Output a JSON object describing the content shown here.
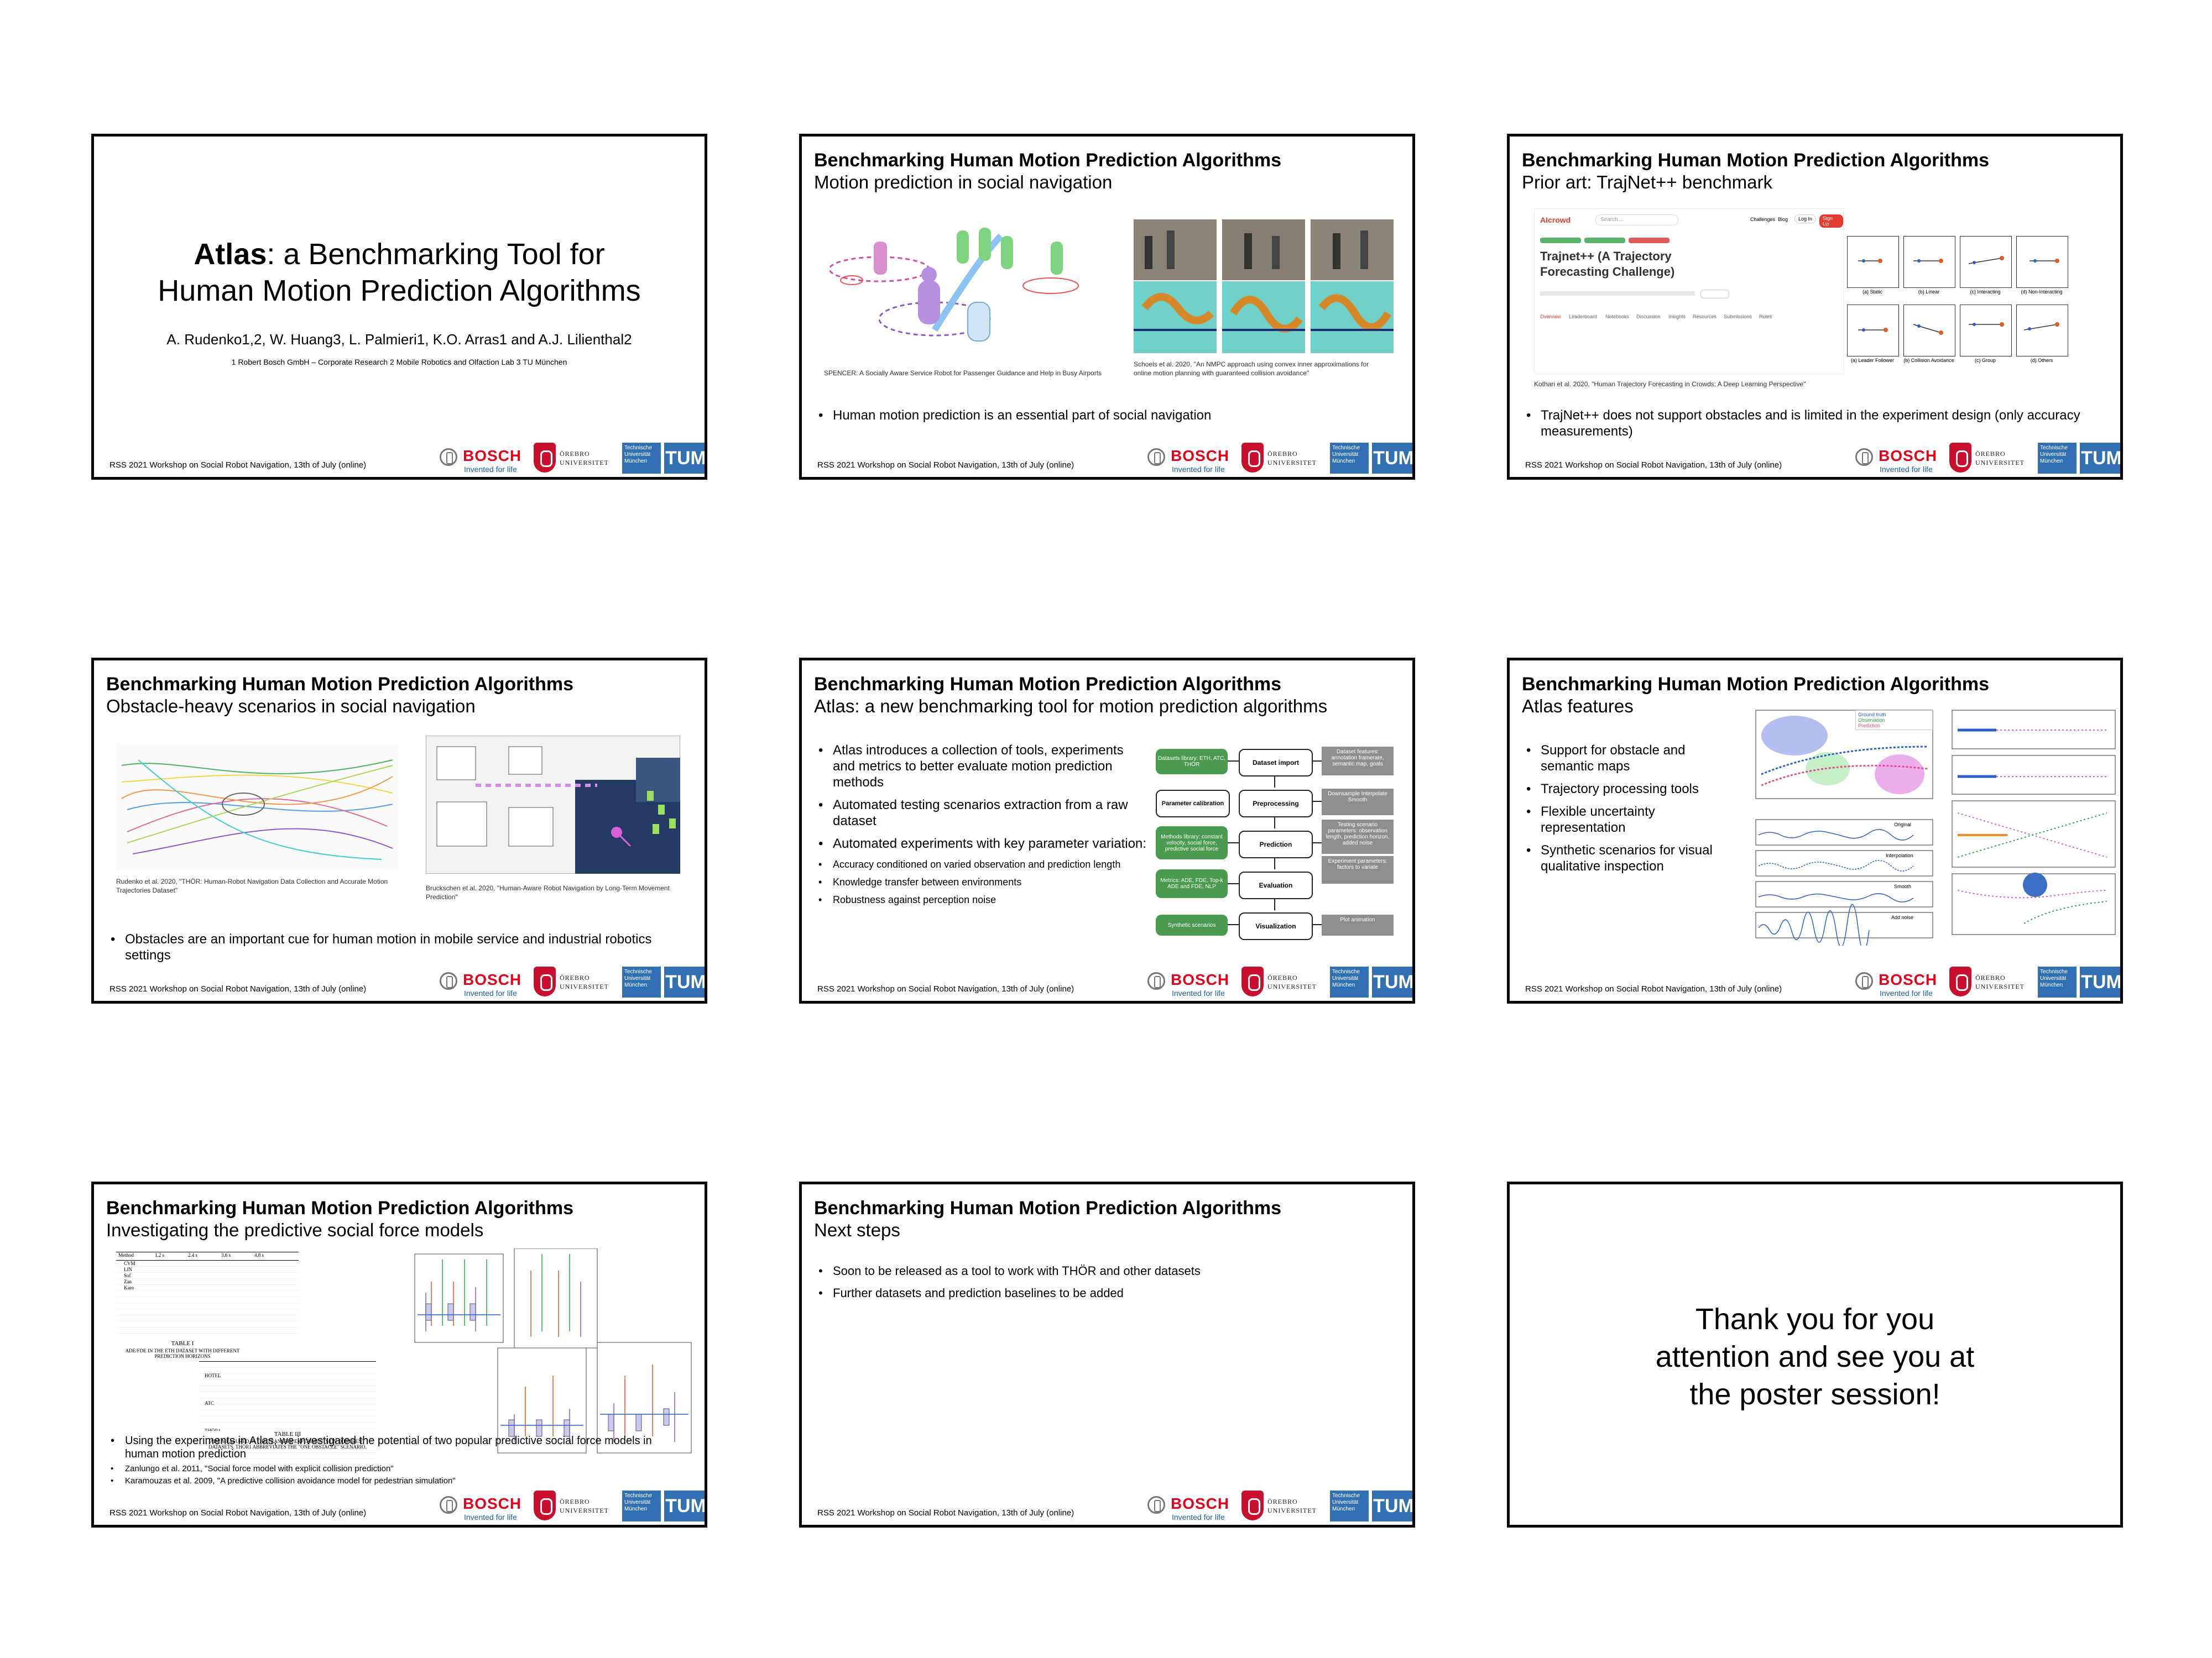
{
  "common": {
    "deck_title": "Benchmarking Human Motion Prediction Algorithms",
    "footer": "RSS 2021 Workshop on Social Robot Navigation, 13th of July (online)",
    "bosch": "BOSCH",
    "bosch_tag": "Invented for life",
    "orebro": "ÖREBRO UNIVERSITET",
    "tum_text": "Technische Universität München",
    "tum_logo": "TUM"
  },
  "slide1": {
    "title_bold": "Atlas",
    "title_rest": ": a Benchmarking Tool for",
    "title_line2": "Human Motion Prediction Algorithms",
    "authors": "A. Rudenko1,2, W. Huang3, L. Palmieri1, K.O. Arras1 and A.J. Lilienthal2",
    "affiliations": "1 Robert Bosch GmbH – Corporate Research    2 Mobile Robotics and Olfaction Lab    3 TU München"
  },
  "slide2": {
    "subtitle": "Motion prediction in social navigation",
    "caption_left": "SPENCER: A Socially Aware Service Robot for Passenger Guidance and Help in Busy Airports",
    "caption_right": "Schoels et al. 2020, \"An NMPC approach using convex inner approximations for online motion planning with guaranteed collision avoidance\"",
    "bullet": "Human motion prediction is an essential part of social navigation"
  },
  "slide3": {
    "subtitle": "Prior art: TrajNet++ benchmark",
    "app_logo": "AIcrowd",
    "search": "Search...",
    "nav_items": [
      "Challenges",
      "Blog",
      "Log In",
      "Sign Up"
    ],
    "challenge_title": "Trajnet++ (A Trajectory Forecasting Challenge)",
    "tabs": [
      "Overview",
      "Leaderboard",
      "Notebooks",
      "Discussion",
      "Insights",
      "Resources",
      "Submissions",
      "Rules"
    ],
    "panel_labels": [
      "(a) Static",
      "(b) Linear",
      "(c) Interacting",
      "(d) Non-Interacting",
      "(a) Leader Follower",
      "(b) Collision Avoidance",
      "(c) Group",
      "(d) Others"
    ],
    "caption": "Kothari et al. 2020, \"Human Trajectory Forecasting in Crowds: A Deep Learning Perspective\"",
    "bullet": "TrajNet++ does not support obstacles and is limited in the experiment design (only accuracy measurements)"
  },
  "slide4": {
    "subtitle": "Obstacle-heavy scenarios in social navigation",
    "caption_left": "Rudenko et al. 2020, \"THÖR: Human-Robot Navigation Data Collection and Accurate Motion Trajectories Dataset\"",
    "caption_right": "Bruckschen et al. 2020, \"Human-Aware Robot Navigation by Long-Term Movement Prediction\"",
    "bullet": "Obstacles are an important cue for human motion in mobile service and industrial robotics settings"
  },
  "slide5": {
    "subtitle": "Atlas: a new benchmarking tool for motion prediction algorithms",
    "bullets": [
      "Atlas introduces a collection of tools, experiments and metrics to better evaluate motion prediction methods",
      "Automated testing scenarios extraction from a raw dataset",
      "Automated experiments with key parameter variation:"
    ],
    "sub_bullets": [
      "Accuracy conditioned on varied observation and prediction length",
      "Knowledge transfer between environments",
      "Robustness against perception noise"
    ],
    "flow_main": [
      "Dataset import",
      "Preprocessing",
      "Prediction",
      "Evaluation",
      "Visualization"
    ],
    "flow_left": [
      "Datasets library: ETH, ATC, THÖR",
      "Parameter calibration",
      "Methods library: constant velocity, social force, predictive social force",
      "Metrics: ADE, FDE, Top-k ADE and FDE, NLP",
      "Synthetic scenarios"
    ],
    "flow_right": [
      "Dataset features: annotation framerate, semantic map, goals",
      "Downsample Interpolate Smooth",
      "Testing scenario parameters: observation length, prediction horizon, added noise",
      "Experiment parameters: factors to variate",
      "Plot animation"
    ]
  },
  "slide6": {
    "subtitle": "Atlas features",
    "bullets": [
      "Support for obstacle and semantic maps",
      "Trajectory processing tools",
      "Flexible uncertainty representation",
      "Synthetic scenarios for visual qualitative inspection"
    ],
    "legend": [
      "Ground truth",
      "Observation",
      "Prediction"
    ],
    "processing_labels": [
      "Original",
      "Interpolation",
      "Smooth",
      "Add noise"
    ]
  },
  "slide7": {
    "subtitle": "Investigating the predictive social force models",
    "table1_caption": "TABLE I",
    "table1_title": "ADE/FDE IN THE ETH DATASET WITH DIFFERENT PREDICTION HORIZONS",
    "table2_caption": "TABLE III",
    "table2_title": "ADE MEASURED IN THE TRANSFER EXPERIMENTS ON DIFFERENT DATASETS. THÖR1 ABBREVIATES THE \"ONE OBSTACLE\" SCENARIO.",
    "table_headers": [
      "Method",
      "1.2 s",
      "2.4 s",
      "3.6 s",
      "4.8 s"
    ],
    "table_methods": [
      "CVM",
      "LIN",
      "Sof",
      "Zan",
      "Karo"
    ],
    "table2_rows": [
      "HOTEL",
      "ATC",
      "THÖR1"
    ],
    "bullet": "Using the experiments in Atlas, we investigated the potential of two popular predictive social force models in human motion prediction",
    "refs": [
      "Zanlungo et al. 2011, \"Social force model with explicit collision prediction\"",
      "Karamouzas et al. 2009, \"A predictive collision avoidance model for pedestrian simulation\""
    ]
  },
  "slide8": {
    "subtitle": "Next steps",
    "bullets": [
      "Soon to be released as a tool to work with THÖR and other datasets",
      "Further datasets and prediction baselines to be added"
    ]
  },
  "slide9": {
    "text_lines": [
      "Thank you for you",
      "attention and see you at",
      "the poster session!"
    ]
  },
  "colors": {
    "bosch_red": "#e2001a",
    "tum_blue": "#3070b3",
    "orebro_red": "#c8102e",
    "flow_green": "#4a9a4f",
    "flow_grey": "#8e8e8e"
  }
}
